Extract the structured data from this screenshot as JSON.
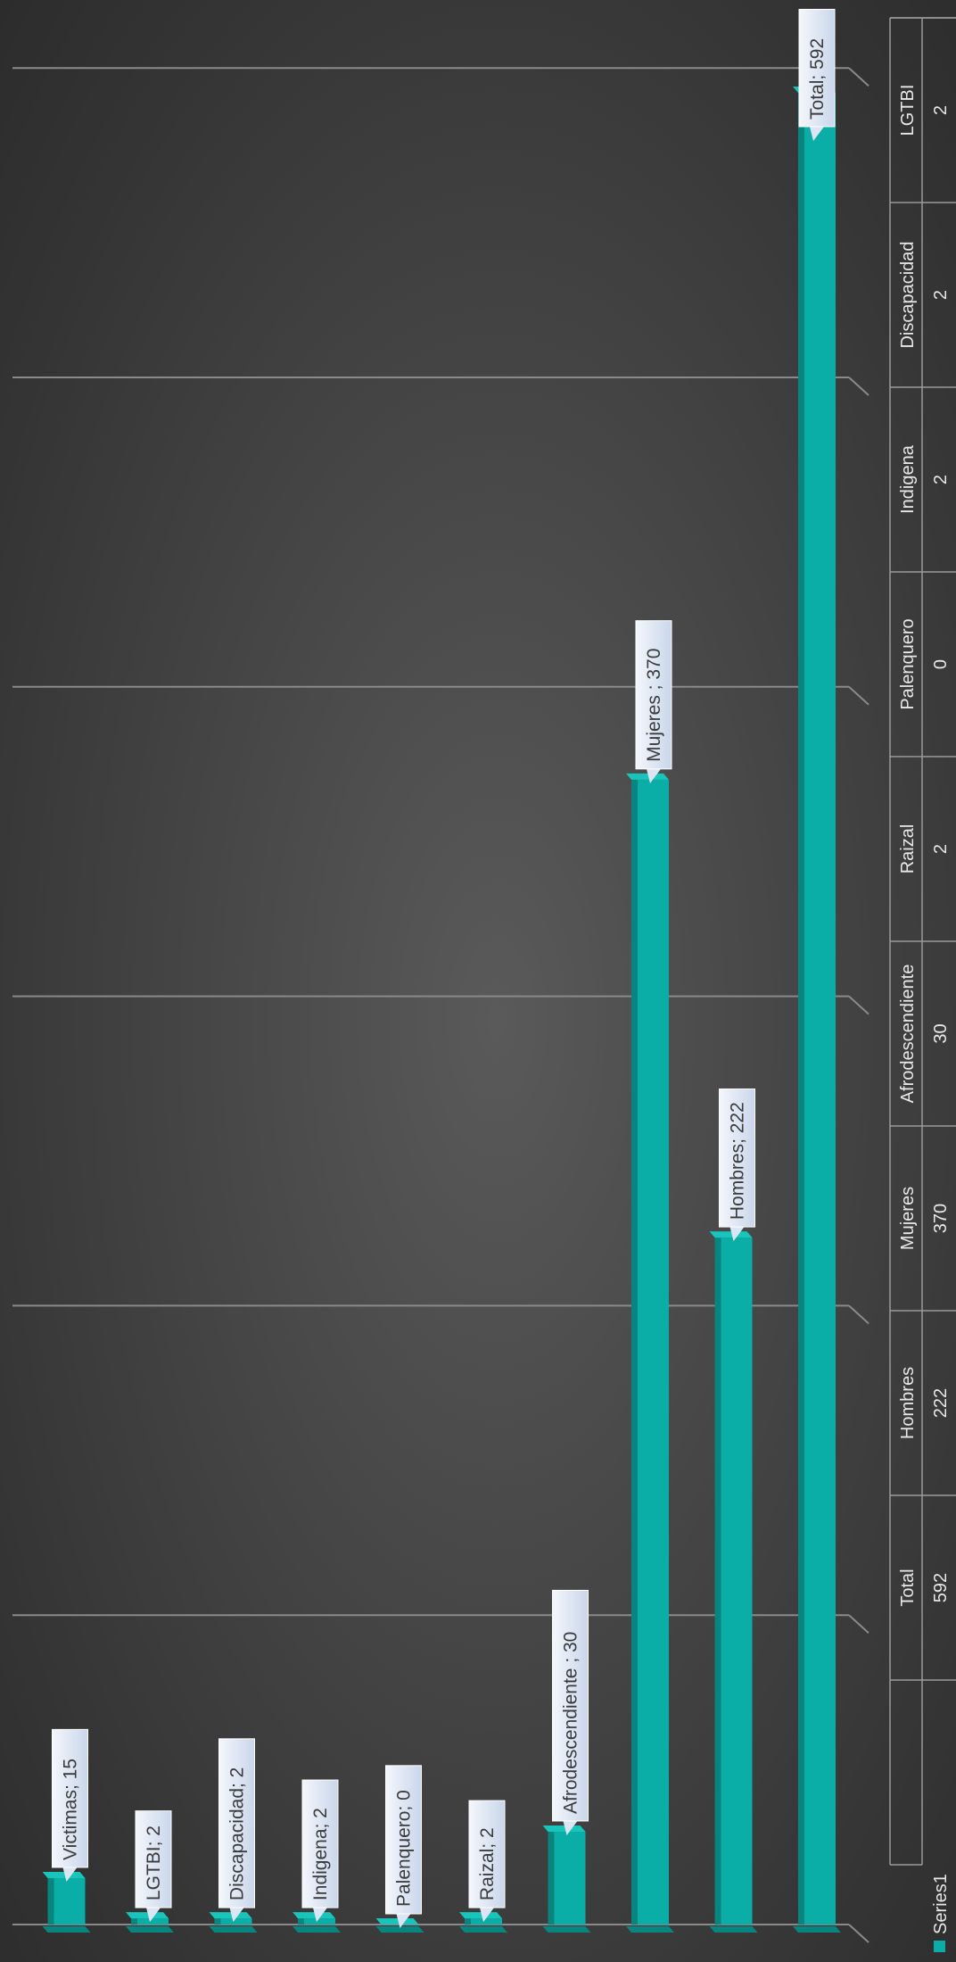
{
  "chart_data": {
    "type": "bar",
    "orientation": "rotated-90-clockwise",
    "title": "",
    "xlabel": "",
    "ylabel": "",
    "categories": [
      "Total",
      "Hombres",
      "Mujeres",
      "Afrodescendiente",
      "Raizal",
      "Palenquero",
      "Indigena",
      "Discapacidad",
      "LGTBI",
      "Victimas"
    ],
    "series": [
      {
        "name": "Series1",
        "values": [
          592,
          222,
          370,
          30,
          2,
          0,
          2,
          2,
          2,
          15
        ]
      }
    ],
    "data_labels": [
      "Total; 592",
      "Hombres; 222",
      "Mujeres ; 370",
      "Afrodescendiente ; 30",
      "Raizal; 2",
      "Palenquero; 0",
      "Indigena; 2",
      "Discapacidad; 2",
      "LGTBI; 2",
      "Victimas; 15"
    ],
    "ylim": [
      0,
      600
    ],
    "y_gridline_step": 100,
    "grid": true,
    "legend": "data-table",
    "colors": {
      "bar": "#0aaea6",
      "bar_side": "#08857f",
      "bar_top": "#19c4bb",
      "label_bg": "#e6eef8"
    }
  }
}
